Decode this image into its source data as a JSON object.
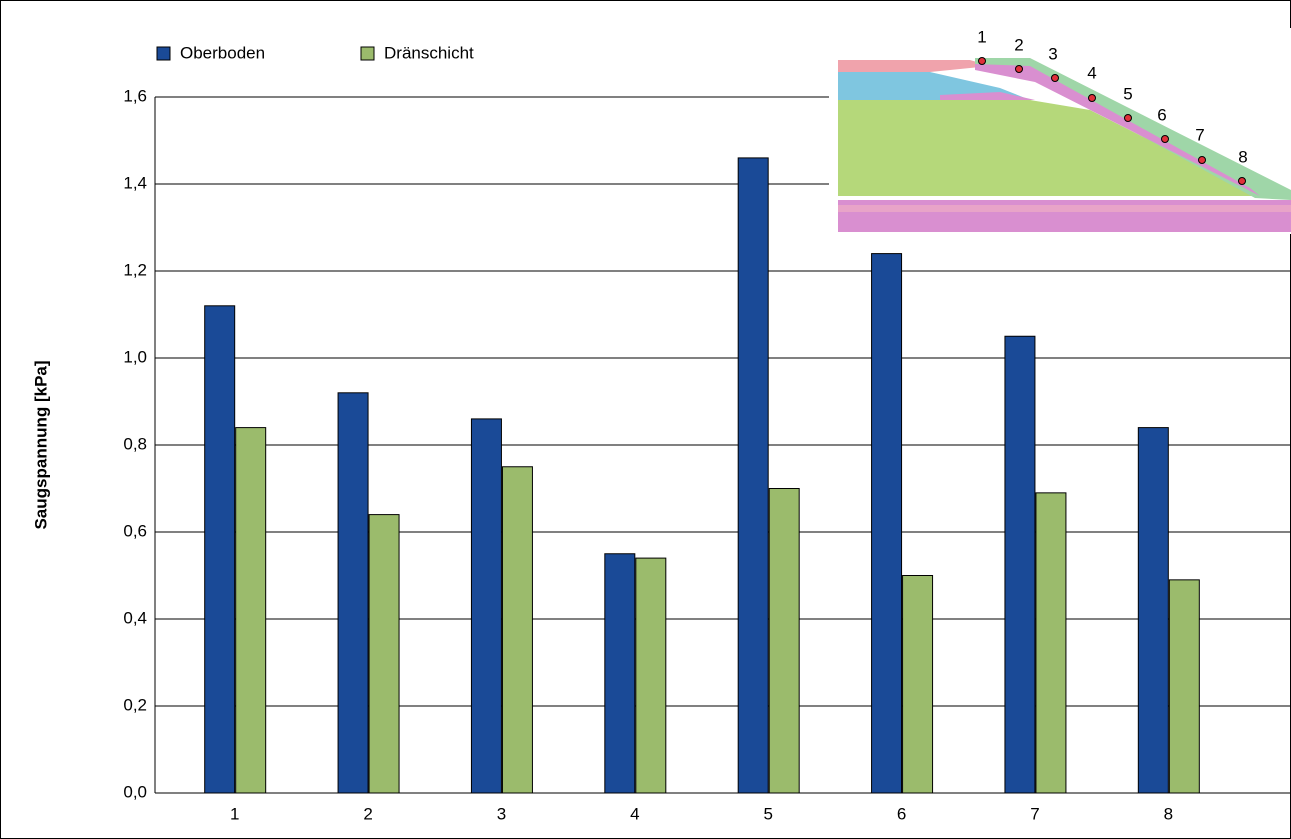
{
  "chart_data": {
    "type": "bar",
    "y_label": "Saugspannung [kPa]",
    "categories": [
      "1",
      "2",
      "3",
      "4",
      "5",
      "6",
      "7",
      "8"
    ],
    "series": [
      {
        "name": "Oberboden",
        "color": "#1a4a97",
        "values": [
          1.12,
          0.92,
          0.86,
          0.55,
          1.46,
          1.24,
          1.05,
          0.84
        ]
      },
      {
        "name": "Dränschicht",
        "color": "#9bbb6c",
        "values": [
          0.84,
          0.64,
          0.75,
          0.54,
          0.7,
          0.5,
          0.69,
          0.49
        ]
      }
    ],
    "ylim": [
      0,
      1.6
    ],
    "yticks": [
      {
        "value": 0,
        "label": "0,0"
      },
      {
        "value": 0.2,
        "label": "0,2"
      },
      {
        "value": 0.4,
        "label": "0,4"
      },
      {
        "value": 0.6,
        "label": "0,6"
      },
      {
        "value": 0.8,
        "label": "0,8"
      },
      {
        "value": 1.0,
        "label": "1,0"
      },
      {
        "value": 1.2,
        "label": "1,2"
      },
      {
        "value": 1.4,
        "label": "1,4"
      },
      {
        "value": 1.6,
        "label": "1,6"
      }
    ],
    "grid": true,
    "legend": "top-left",
    "inset_labels": [
      "1",
      "2",
      "3",
      "4",
      "5",
      "6",
      "7",
      "8"
    ]
  }
}
